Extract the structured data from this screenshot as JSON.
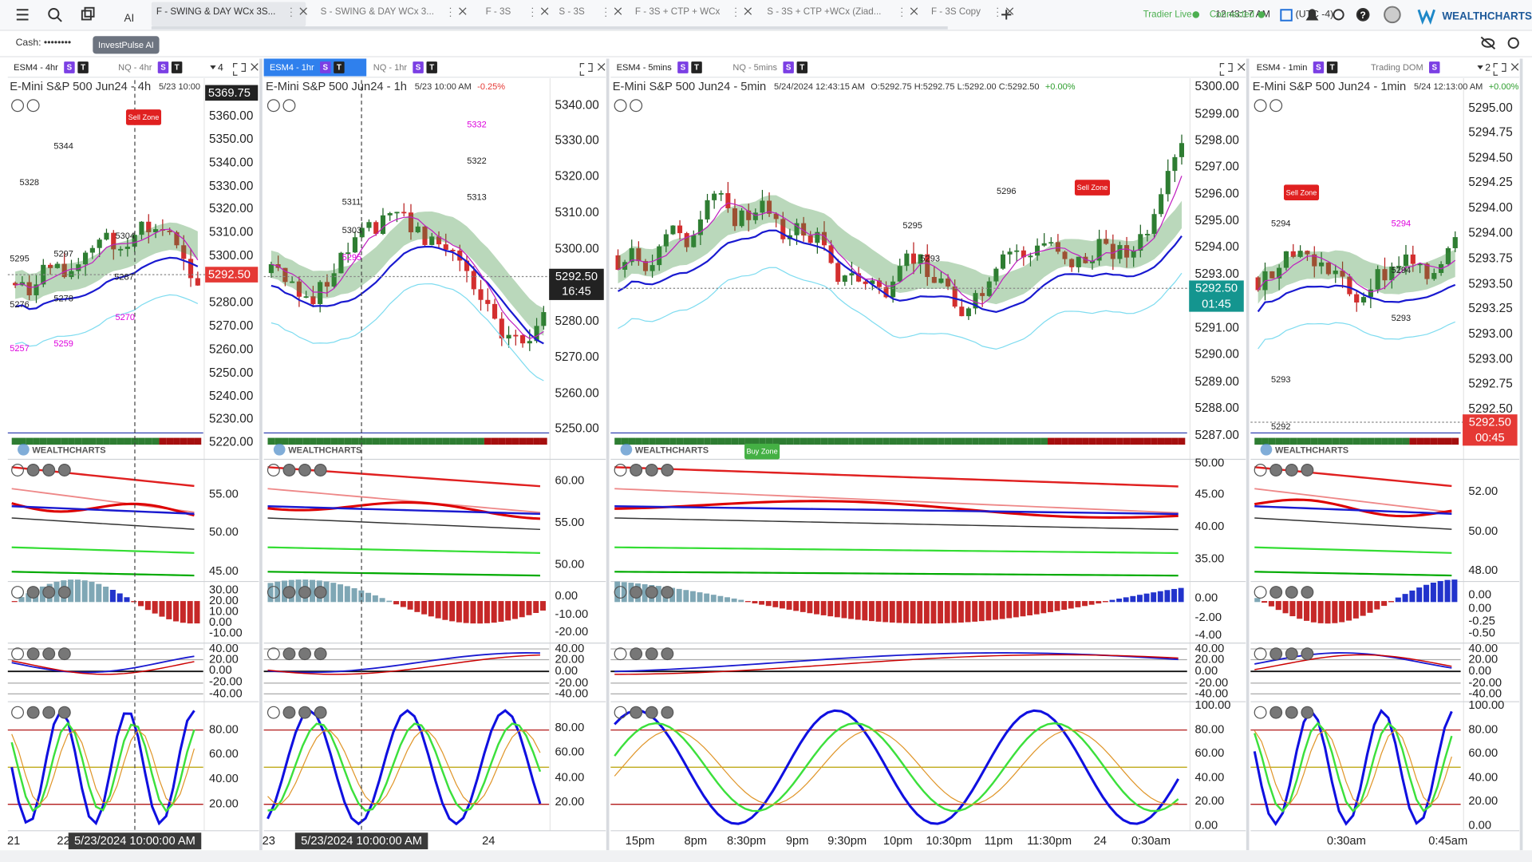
{
  "tabs": [
    "F - SWING & DAY WCx 3S...",
    "S - SWING & DAY WCx 3...",
    "F - 3S",
    "S - 3S",
    "F - 3S + CTP + WCx",
    "S - 3S + CTP +WCx (Ziad...",
    "F - 3S Copy"
  ],
  "header": {
    "time": "12:43:17 AM",
    "timezone": "(UTC -4)",
    "tradier": "Tradier Live",
    "connected": "Connected",
    "brand": "WEALTHCHARTS"
  },
  "toolbar": {
    "ai_icon": "AI",
    "cash": "Cash: ••••••••",
    "ai_button": "InvestPulse AI"
  },
  "panels": [
    {
      "tabs": [
        {
          "label": "ESM4 - 4hr",
          "badges": [
            "S",
            "T"
          ]
        },
        {
          "label": "NQ - 4hr",
          "badges": [
            "S",
            "T"
          ]
        }
      ],
      "layout_count": "4",
      "title": "E-Mini S&P 500 Jun24 - 4h",
      "info": [
        "5/23 10:00"
      ],
      "watermark": "WEALTHCHARTS",
      "price_axis": [
        "5360.00",
        "5350.00",
        "5340.00",
        "5330.00",
        "5320.00",
        "5310.00",
        "5300.00",
        "5280.00",
        "5270.00",
        "5260.00",
        "5250.00",
        "5240.00",
        "5230.00",
        "5220.00"
      ],
      "price_tags": [
        "5369.75",
        "5292.50"
      ],
      "panes": [
        [
          "55.00",
          "50.00",
          "45.00"
        ],
        [
          "30.00",
          "20.00",
          "10.00",
          "0.00",
          "-10.00"
        ],
        [
          "40.00",
          "20.00",
          "0.00",
          "-20.00",
          "-40.00"
        ],
        [
          "80.00",
          "60.00",
          "40.00",
          "20.00"
        ]
      ],
      "time_axis": [
        "21",
        "22"
      ],
      "crosshair_time": "5/23/2024 10:00:00 AM",
      "annotations": [
        "Sell Zone",
        "5344",
        "5328",
        "5304",
        "5297",
        "5295",
        "5287",
        "5278",
        "5276",
        "5270",
        "5259",
        "5257"
      ]
    },
    {
      "tabs": [
        {
          "label": "ESM4 - 1hr",
          "badges": [
            "S",
            "T"
          ]
        },
        {
          "label": "NQ - 1hr",
          "badges": [
            "S",
            "T"
          ]
        }
      ],
      "title": "E-Mini S&P 500 Jun24 - 1h",
      "info": [
        "5/23 10:00 AM",
        "-0.25%"
      ],
      "watermark": "WEALTHCHARTS",
      "price_axis": [
        "5340.00",
        "5330.00",
        "5320.00",
        "5310.00",
        "5300.00",
        "5280.00",
        "5270.00",
        "5260.00",
        "5250.00"
      ],
      "price_tags": [
        "5292.50",
        "16:45"
      ],
      "panes": [
        [
          "60.00",
          "55.00",
          "50.00"
        ],
        [
          "0.00",
          "-10.00",
          "-20.00"
        ],
        [
          "40.00",
          "20.00",
          "0.00",
          "-20.00",
          "-40.00"
        ],
        [
          "80.00",
          "60.00",
          "40.00",
          "20.00"
        ]
      ],
      "time_axis": [
        "23",
        "24"
      ],
      "crosshair_time": "5/23/2024 10:00:00 AM",
      "annotations": [
        "5332",
        "5322",
        "5313",
        "5311",
        "5303",
        "5295"
      ]
    },
    {
      "tabs": [
        {
          "label": "ESM4 - 5mins",
          "badges": [
            "S",
            "T"
          ]
        },
        {
          "label": "NQ - 5mins",
          "badges": [
            "S",
            "T"
          ]
        }
      ],
      "title": "E-Mini S&P 500 Jun24 - 5min",
      "info": [
        "5/24/2024 12:43:15 AM",
        "O:5292.75 H:5292.75 L:5292.00 C:5292.50",
        "+0.00%"
      ],
      "watermark": "WEALTHCHARTS",
      "price_axis": [
        "5300.00",
        "5299.00",
        "5298.00",
        "5297.00",
        "5296.00",
        "5295.00",
        "5294.00",
        "5293.00",
        "5291.00",
        "5290.00",
        "5289.00",
        "5288.00",
        "5287.00"
      ],
      "price_tags": [
        "5292.50",
        "01:45"
      ],
      "panes": [
        [
          "50.00",
          "45.00",
          "40.00",
          "35.00"
        ],
        [
          "0.00",
          "-2.00",
          "-4.00"
        ],
        [
          "40.00",
          "20.00",
          "0.00",
          "-20.00",
          "-40.00"
        ],
        [
          "100.00",
          "80.00",
          "60.00",
          "40.00",
          "20.00",
          "0.00"
        ]
      ],
      "time_axis": [
        "15pm",
        "8pm",
        "8:30pm",
        "9pm",
        "9:30pm",
        "10pm",
        "10:30pm",
        "11pm",
        "11:30pm",
        "24",
        "0:30am"
      ],
      "annotations": [
        "Sell Zone",
        "Buy Zone",
        "5296",
        "5295",
        "5293"
      ]
    },
    {
      "tabs": [
        {
          "label": "ESM4 - 1min",
          "badges": [
            "S",
            "T"
          ]
        },
        {
          "label": "Trading DOM",
          "badges": [
            "S"
          ]
        }
      ],
      "layout_count": "2",
      "title": "E-Mini S&P 500 Jun24 - 1min",
      "info": [
        "5/24 12:13:00 AM",
        "+0.00%"
      ],
      "watermark": "WEALTHCHARTS",
      "price_axis": [
        "5295.00",
        "5294.75",
        "5294.50",
        "5294.25",
        "5294.00",
        "5294.00",
        "5293.75",
        "5293.50",
        "5293.25",
        "5293.00",
        "5293.00",
        "5292.75",
        "5292.50"
      ],
      "price_tags": [
        "5292.50",
        "00:45"
      ],
      "panes": [
        [
          "52.00",
          "50.00",
          "48.00"
        ],
        [
          "0.00",
          "0.00",
          "-0.25",
          "-0.50"
        ],
        [
          "40.00",
          "20.00",
          "0.00",
          "-20.00",
          "-40.00"
        ],
        [
          "100.00",
          "80.00",
          "60.00",
          "40.00",
          "20.00",
          "0.00"
        ]
      ],
      "time_axis": [
        "0:30am",
        "0:45am"
      ],
      "annotations": [
        "Sell Zone",
        "5294",
        "5294",
        "5294",
        "5293",
        "5293",
        "5292"
      ]
    }
  ]
}
